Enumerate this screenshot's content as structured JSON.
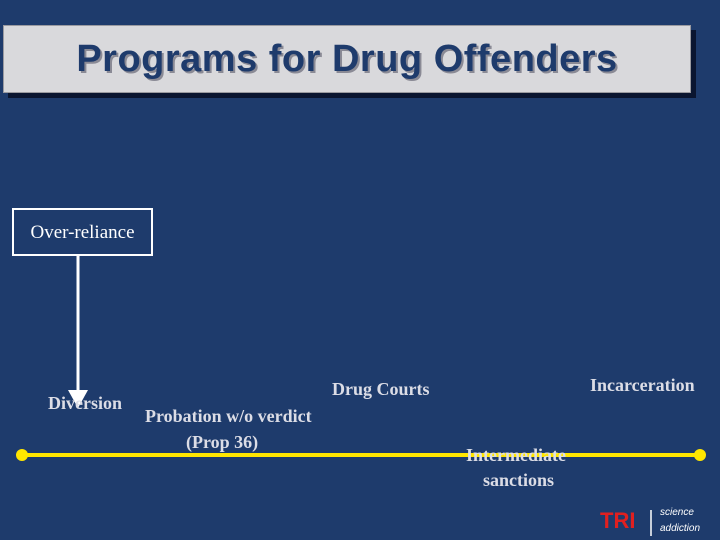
{
  "slide": {
    "title": "Programs for Drug Offenders",
    "box_label": "Over-reliance",
    "labels": {
      "diversion": "Diversion",
      "probation": [
        "Probation w/o verdict",
        "(Prop 36)"
      ],
      "drug_courts": "Drug Courts",
      "intermediate": [
        "Intermediate",
        "sanctions"
      ],
      "incarceration": "Incarceration"
    },
    "logo": {
      "mark": "TRI",
      "lines": [
        "science",
        "addiction"
      ]
    }
  }
}
